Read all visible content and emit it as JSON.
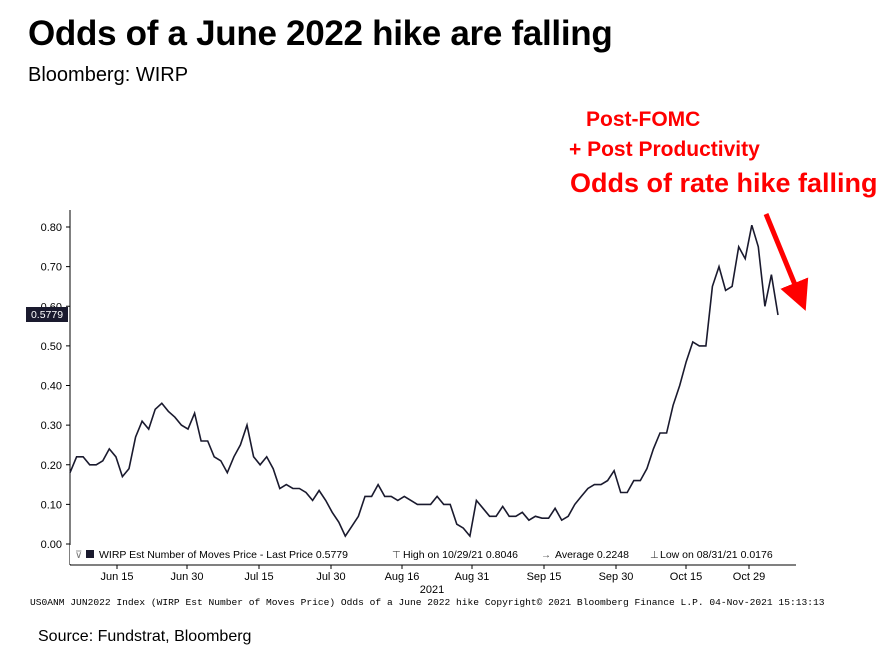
{
  "title": "Odds of a June 2022 hike are falling",
  "subtitle": "Bloomberg: WIRP",
  "annotation": {
    "line1": "Post-FOMC",
    "line2": "+ Post Productivity",
    "line3": "Odds of rate hike falling",
    "color": "#ff0000"
  },
  "footer": "US0ANM JUN2022 Index (WIRP Est Number of Moves Price) Odds of a June 2022 hike Copyright© 2021 Bloomberg Finance L.P. 04-Nov-2021 15:13:13",
  "source": "Source: Fundstrat, Bloomberg",
  "legend": {
    "series": "WIRP Est Number of Moves Price - Last Price 0.5779",
    "high": "High on 10/29/21 0.8046",
    "average": "Average 0.2248",
    "low": "Low on 08/31/21 0.0176"
  },
  "last_price_label": "0.5779",
  "chart_data": {
    "type": "line",
    "xlabel": "2021",
    "ylim": [
      0,
      0.85
    ],
    "yticks": [
      "0.00",
      "0.10",
      "0.20",
      "0.30",
      "0.40",
      "0.50",
      "0.60",
      "0.70",
      "0.80"
    ],
    "xticks": [
      "Jun 15",
      "Jun 30",
      "Jul 15",
      "Jul 30",
      "Aug 16",
      "Aug 31",
      "Sep 15",
      "Sep 30",
      "Oct 15",
      "Oct 29"
    ],
    "series": [
      {
        "name": "WIRP Est Number of Moves Price",
        "color": "#1a1a2e",
        "values": [
          0.18,
          0.22,
          0.22,
          0.2,
          0.2,
          0.21,
          0.24,
          0.22,
          0.17,
          0.19,
          0.27,
          0.31,
          0.29,
          0.34,
          0.355,
          0.335,
          0.32,
          0.3,
          0.29,
          0.33,
          0.26,
          0.26,
          0.22,
          0.21,
          0.18,
          0.22,
          0.25,
          0.3,
          0.22,
          0.2,
          0.22,
          0.19,
          0.14,
          0.15,
          0.14,
          0.14,
          0.13,
          0.11,
          0.135,
          0.11,
          0.08,
          0.055,
          0.02,
          0.045,
          0.07,
          0.12,
          0.12,
          0.15,
          0.12,
          0.12,
          0.11,
          0.12,
          0.11,
          0.1,
          0.1,
          0.1,
          0.12,
          0.1,
          0.1,
          0.05,
          0.04,
          0.02,
          0.11,
          0.09,
          0.07,
          0.07,
          0.095,
          0.07,
          0.07,
          0.08,
          0.06,
          0.07,
          0.065,
          0.065,
          0.09,
          0.06,
          0.07,
          0.1,
          0.12,
          0.14,
          0.15,
          0.15,
          0.16,
          0.185,
          0.13,
          0.13,
          0.16,
          0.16,
          0.19,
          0.24,
          0.28,
          0.28,
          0.35,
          0.4,
          0.46,
          0.51,
          0.5,
          0.5,
          0.65,
          0.7,
          0.64,
          0.65,
          0.75,
          0.72,
          0.8046,
          0.75,
          0.6,
          0.68,
          0.5779
        ]
      }
    ]
  }
}
